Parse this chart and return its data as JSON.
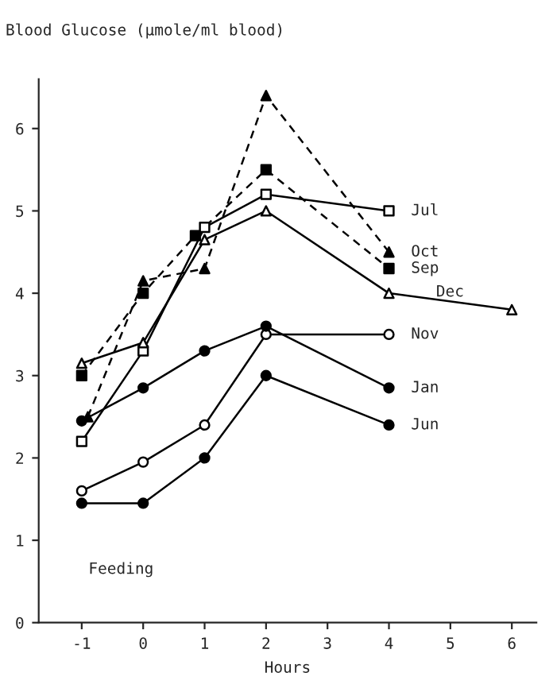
{
  "chart_data": {
    "type": "line",
    "ylabel": "Blood Glucose (μmole/ml blood)",
    "xlabel": "Hours",
    "annotations": [
      "Feeding"
    ],
    "xlim": [
      -1.7,
      6.4
    ],
    "ylim": [
      0,
      6.6
    ],
    "xticks": [
      -1,
      0,
      1,
      2,
      3,
      4,
      5,
      6
    ],
    "yticks": [
      0,
      1,
      2,
      3,
      4,
      5,
      6
    ],
    "grid": false,
    "legend": false,
    "series": [
      {
        "name": "Jul",
        "color": "#000000",
        "marker": "square",
        "colors": [
          "#ffffff",
          "#ffffff",
          "#ffffff",
          "#ffffff",
          "#ffffff"
        ],
        "line_style": "solid",
        "x": [
          -1,
          0,
          1,
          2,
          4
        ],
        "values": [
          2.2,
          3.3,
          4.8,
          5.2,
          5.0
        ]
      },
      {
        "name": "Oct",
        "color": "#000000",
        "marker": "triangle",
        "line_style": "dashed",
        "x": [
          -0.9,
          0,
          1,
          2,
          4
        ],
        "values": [
          2.5,
          4.15,
          4.3,
          6.4,
          4.5
        ]
      },
      {
        "name": "Sep",
        "color": "#000000",
        "marker": "square",
        "line_style": "dashed",
        "x": [
          -1,
          0,
          0.85,
          2,
          4
        ],
        "values": [
          3.0,
          4.0,
          4.7,
          5.5,
          4.3
        ]
      },
      {
        "name": "Dec",
        "color": "#000000",
        "marker": "triangle",
        "colors": [
          "#ffffff",
          "#ffffff",
          "#ffffff",
          "#ffffff",
          "#ffffff",
          "#ffffff"
        ],
        "line_style": "solid",
        "x": [
          -1,
          0,
          1,
          2,
          4,
          6
        ],
        "values": [
          3.15,
          3.4,
          4.65,
          5.0,
          4.0,
          3.8
        ]
      },
      {
        "name": "Nov",
        "color": "#000000",
        "marker": "circle",
        "colors": [
          "#ffffff",
          "#ffffff",
          "#ffffff",
          "#ffffff",
          "#ffffff"
        ],
        "line_style": "solid",
        "x": [
          -1,
          0,
          1,
          2,
          4
        ],
        "values": [
          1.6,
          1.95,
          2.4,
          3.5,
          3.5
        ]
      },
      {
        "name": "Jan",
        "color": "#000000",
        "marker": "circle",
        "line_style": "solid",
        "x": [
          -1,
          0,
          1,
          2,
          4
        ],
        "values": [
          2.45,
          2.85,
          3.3,
          3.6,
          2.85
        ]
      },
      {
        "name": "Jun",
        "color": "#000000",
        "marker": "circle",
        "line_style": "solid",
        "x": [
          -1,
          0,
          1,
          2,
          4
        ],
        "values": [
          1.45,
          1.45,
          2.0,
          3.0,
          2.4
        ]
      }
    ]
  }
}
